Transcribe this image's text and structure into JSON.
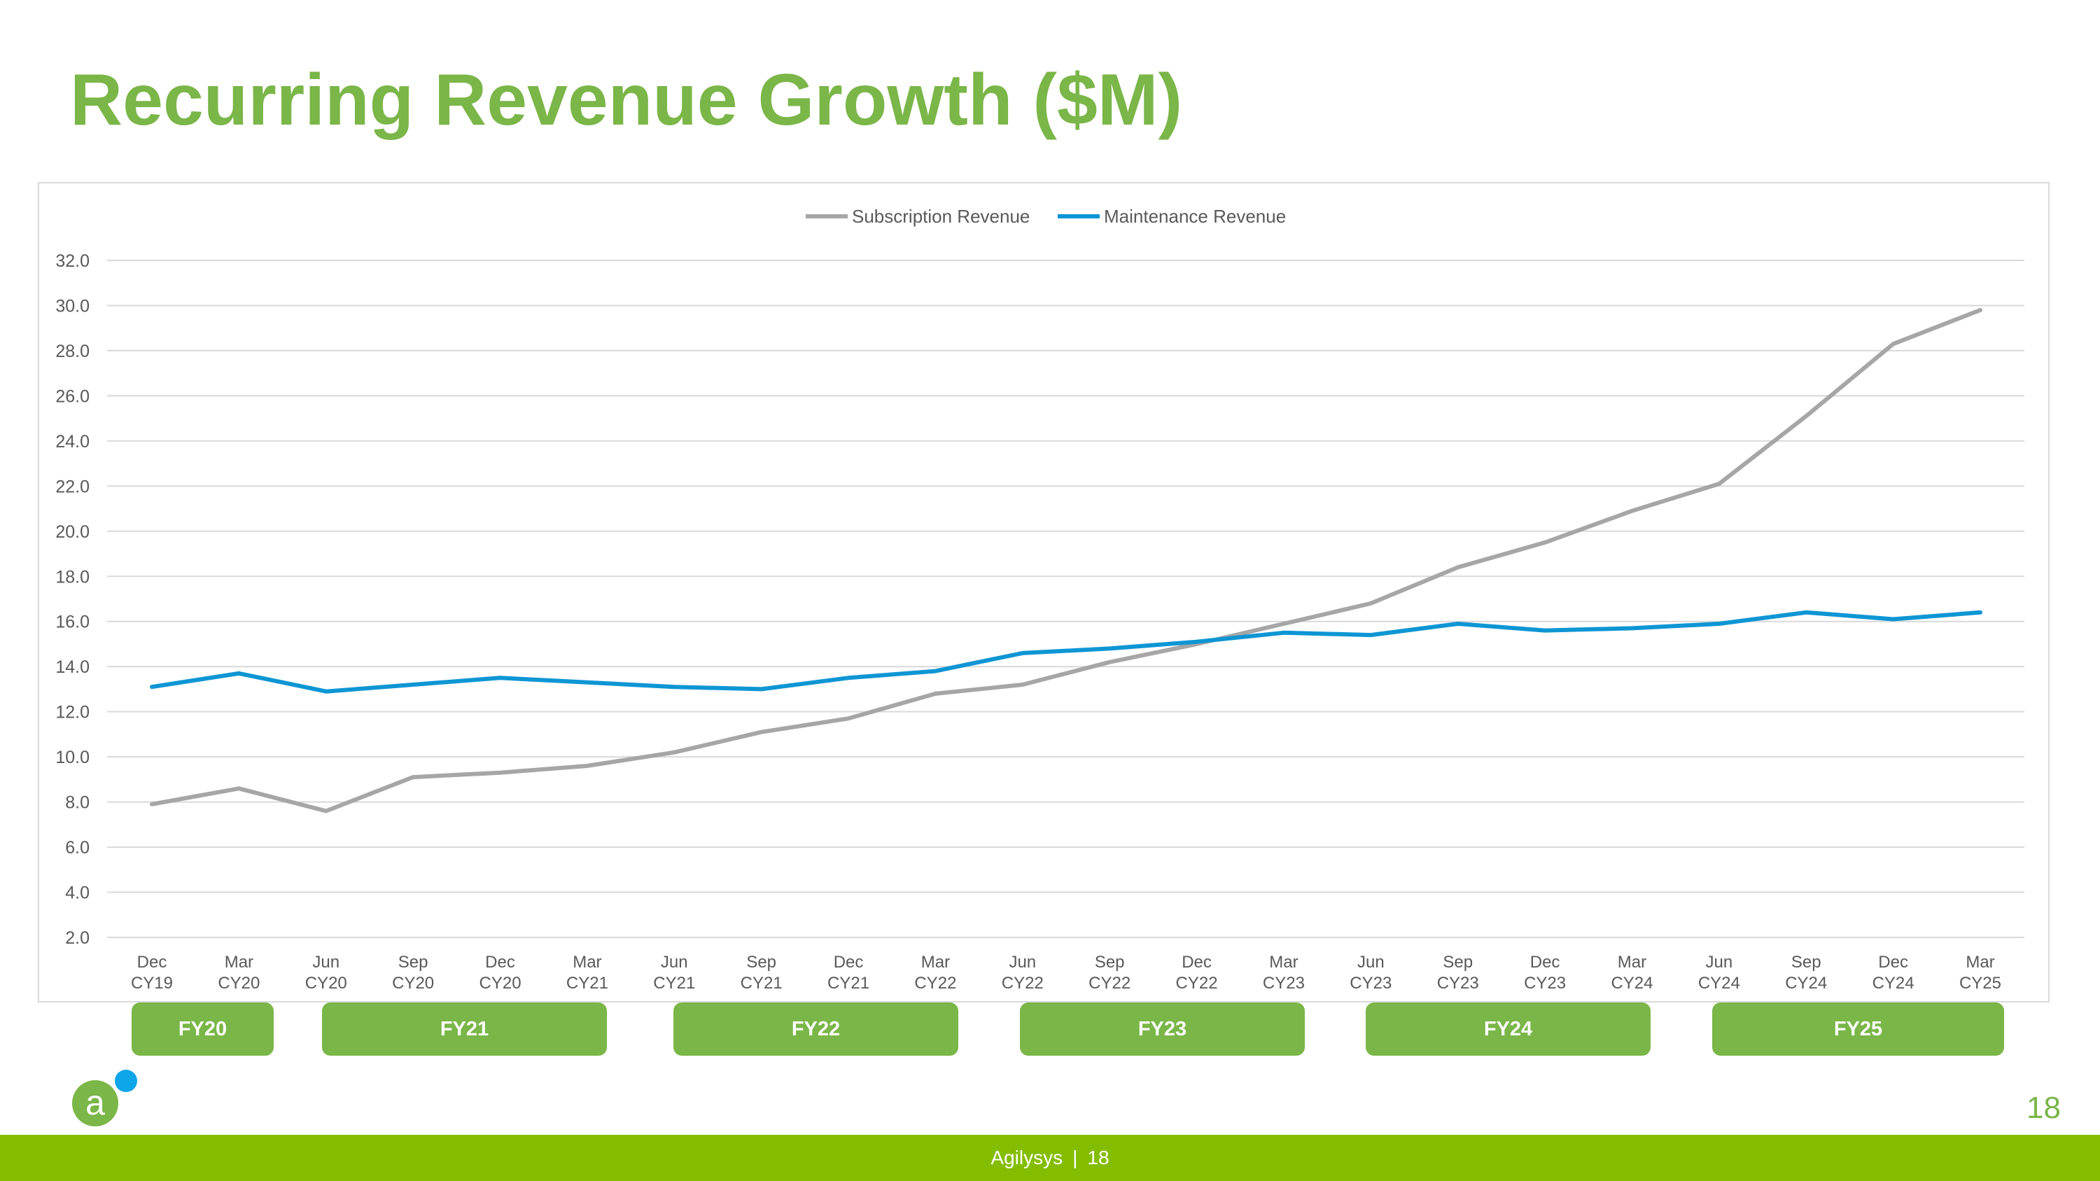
{
  "slide": {
    "title": "Recurring Revenue Growth ($M)",
    "page_number": "18",
    "footer": {
      "company": "Agilysys",
      "separator": "|",
      "page": "18"
    },
    "logo_letter": "a",
    "colors": {
      "title_green": "#7ab648",
      "footer_green": "#84bd00",
      "logo_blue": "#0ea5e9"
    }
  },
  "fiscal_years": [
    {
      "label": "FY20"
    },
    {
      "label": "FY21"
    },
    {
      "label": "FY22"
    },
    {
      "label": "FY23"
    },
    {
      "label": "FY24"
    },
    {
      "label": "FY25"
    }
  ],
  "chart_data": {
    "type": "line",
    "title": "",
    "xlabel": "",
    "ylabel": "",
    "ylim": [
      2.0,
      32.0
    ],
    "yticks": [
      "32.0",
      "30.0",
      "28.0",
      "26.0",
      "24.0",
      "22.0",
      "20.0",
      "18.0",
      "16.0",
      "14.0",
      "12.0",
      "10.0",
      "8.0",
      "6.0",
      "4.0",
      "2.0"
    ],
    "grid": true,
    "legend_position": "top-center",
    "categories": [
      [
        "Dec",
        "CY19"
      ],
      [
        "Mar",
        "CY20"
      ],
      [
        "Jun",
        "CY20"
      ],
      [
        "Sep",
        "CY20"
      ],
      [
        "Dec",
        "CY20"
      ],
      [
        "Mar",
        "CY21"
      ],
      [
        "Jun",
        "CY21"
      ],
      [
        "Sep",
        "CY21"
      ],
      [
        "Dec",
        "CY21"
      ],
      [
        "Mar",
        "CY22"
      ],
      [
        "Jun",
        "CY22"
      ],
      [
        "Sep",
        "CY22"
      ],
      [
        "Dec",
        "CY22"
      ],
      [
        "Mar",
        "CY23"
      ],
      [
        "Jun",
        "CY23"
      ],
      [
        "Sep",
        "CY23"
      ],
      [
        "Dec",
        "CY23"
      ],
      [
        "Mar",
        "CY24"
      ],
      [
        "Jun",
        "CY24"
      ],
      [
        "Sep",
        "CY24"
      ],
      [
        "Dec",
        "CY24"
      ],
      [
        "Mar",
        "CY25"
      ]
    ],
    "series": [
      {
        "name": "Subscription Revenue",
        "color": "#a6a6a6",
        "values": [
          7.9,
          8.6,
          7.6,
          9.1,
          9.3,
          9.6,
          10.2,
          11.1,
          11.7,
          12.8,
          13.2,
          14.2,
          15.0,
          15.9,
          16.8,
          18.4,
          19.5,
          20.9,
          22.1,
          25.1,
          28.3,
          29.8
        ]
      },
      {
        "name": "Maintenance Revenue",
        "color": "#0e96d4",
        "values": [
          13.1,
          13.7,
          12.9,
          13.2,
          13.5,
          13.3,
          13.1,
          13.0,
          13.5,
          13.8,
          14.6,
          14.8,
          15.1,
          15.5,
          15.4,
          15.9,
          15.6,
          15.7,
          15.9,
          16.4,
          16.1,
          16.4
        ]
      }
    ]
  }
}
